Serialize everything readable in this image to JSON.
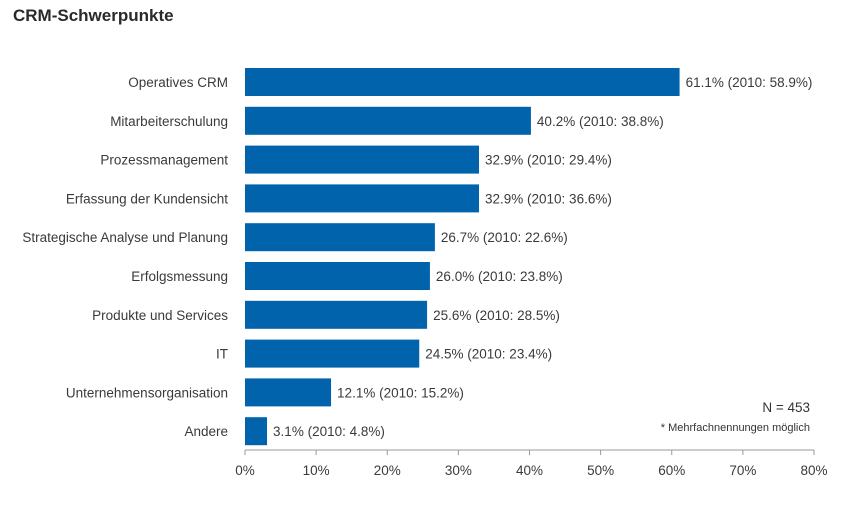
{
  "title": "CRM-Schwerpunkte",
  "notes": {
    "n": "N = 453",
    "multiple": "* Mehrfachnennungen möglich"
  },
  "colors": {
    "bar": "#0063ac",
    "axis": "#999999"
  },
  "chart_data": {
    "type": "bar",
    "orientation": "horizontal",
    "title": "CRM-Schwerpunkte",
    "xlabel": "",
    "ylabel": "",
    "xlim": [
      0,
      80
    ],
    "xticks": [
      "0%",
      "10%",
      "20%",
      "30%",
      "40%",
      "50%",
      "60%",
      "70%",
      "80%"
    ],
    "grid": false,
    "categories": [
      "Operatives CRM",
      "Mitarbeiterschulung",
      "Prozessmanagement",
      "Erfassung der Kundensicht",
      "Strategische Analyse und Planung",
      "Erfolgsmessung",
      "Produkte und Services",
      "IT",
      "Unternehmensorganisation",
      "Andere"
    ],
    "values": [
      61.1,
      40.2,
      32.9,
      32.9,
      26.7,
      26.0,
      25.6,
      24.5,
      12.1,
      3.1
    ],
    "values_2010": [
      58.9,
      38.8,
      29.4,
      36.6,
      22.6,
      23.8,
      28.5,
      23.4,
      15.2,
      4.8
    ],
    "data_labels": [
      "61.1% (2010: 58.9%)",
      "40.2% (2010: 38.8%)",
      "32.9% (2010: 29.4%)",
      "32.9% (2010: 36.6%)",
      "26.7% (2010: 22.6%)",
      "26.0% (2010: 23.8%)",
      "25.6% (2010: 28.5%)",
      "24.5% (2010: 23.4%)",
      "12.1% (2010: 15.2%)",
      "3.1% (2010: 4.8%)"
    ]
  }
}
